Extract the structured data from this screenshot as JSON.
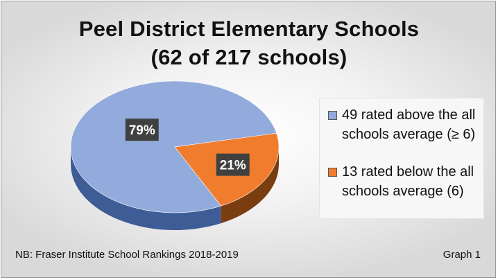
{
  "chart_data": {
    "type": "pie",
    "title": "Peel District Elementary Schools",
    "subtitle": "(62 of 217 schools)",
    "slices": [
      {
        "label": "49 rated above the all schools average (≥ 6)",
        "value": 79,
        "value_label": "79%",
        "color": "#93ABDC",
        "side_color": "#3E5C95"
      },
      {
        "label": "13 rated below the all schools average (6)",
        "value": 21,
        "value_label": "21%",
        "color": "#F07C2D",
        "side_color": "#7A3D10"
      }
    ],
    "legend_position": "right",
    "style": "3d-pie"
  },
  "footer": {
    "note": "NB: Fraser Institute School Rankings 2018-2019",
    "graph_label": "Graph 1"
  }
}
